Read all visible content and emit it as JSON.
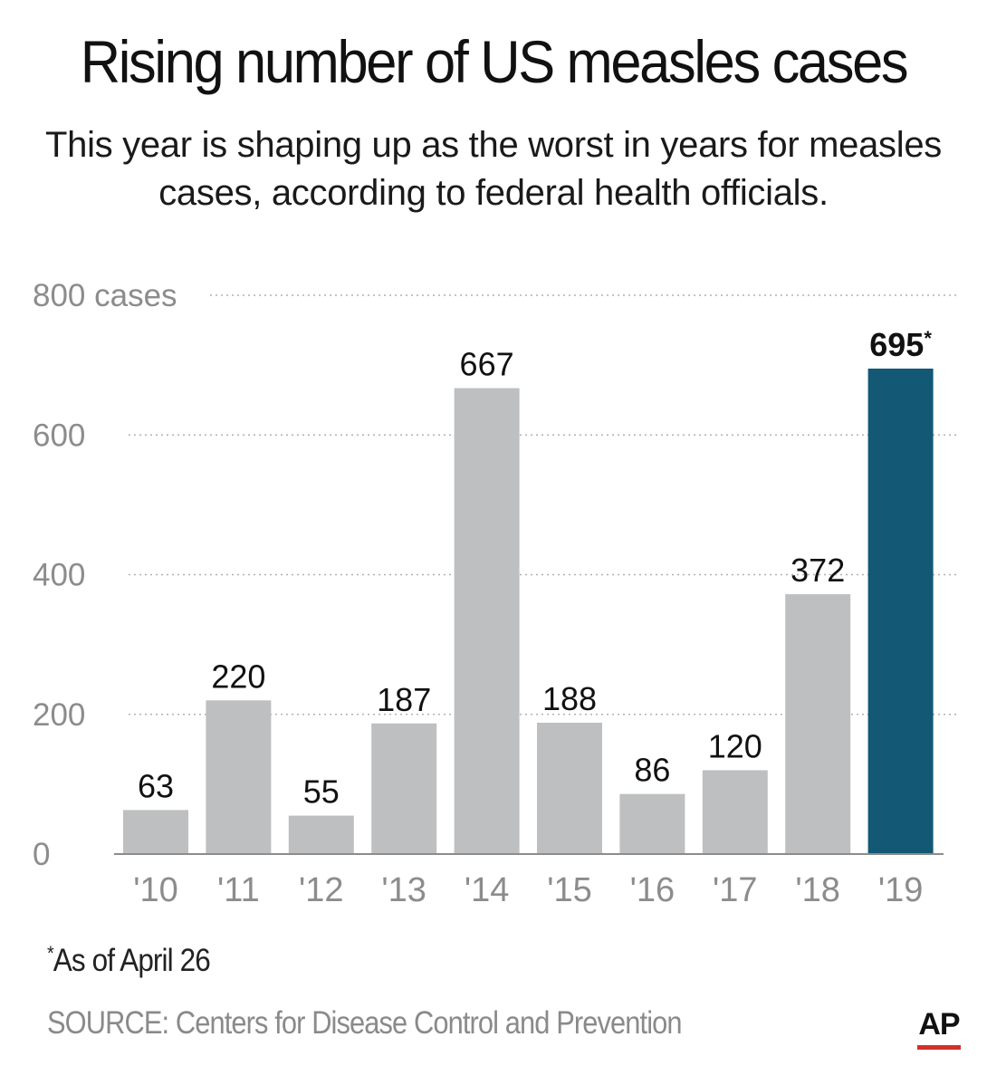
{
  "title": "Rising number of US measles cases",
  "subtitle": "This year is shaping up as the worst in years for measles cases, according to federal health officials.",
  "footnote": {
    "marker": "*",
    "text": "As of April 26"
  },
  "source": "SOURCE: Centers for Disease Control and Prevention",
  "logo": "AP",
  "colors": {
    "bar": "#bdbfc0",
    "highlight": "#135874",
    "grid": "#b0b0b0",
    "axis": "#8c8c8c",
    "logo_accent": "#d3302b"
  },
  "chart_data": {
    "type": "bar",
    "categories": [
      "'10",
      "'11",
      "'12",
      "'13",
      "'14",
      "'15",
      "'16",
      "'17",
      "'18",
      "'19"
    ],
    "values": [
      63,
      220,
      55,
      187,
      667,
      188,
      86,
      120,
      372,
      695
    ],
    "data_labels": [
      "63",
      "220",
      "55",
      "187",
      "667",
      "188",
      "86",
      "120",
      "372",
      "695*"
    ],
    "highlight_index": 9,
    "yticks": [
      0,
      200,
      400,
      600,
      800
    ],
    "ytick_labels": [
      "0",
      "200",
      "400",
      "600",
      "800 cases"
    ],
    "ylim": [
      0,
      800
    ],
    "grid": "dotted horizontal",
    "xlabel": "",
    "ylabel": ""
  }
}
